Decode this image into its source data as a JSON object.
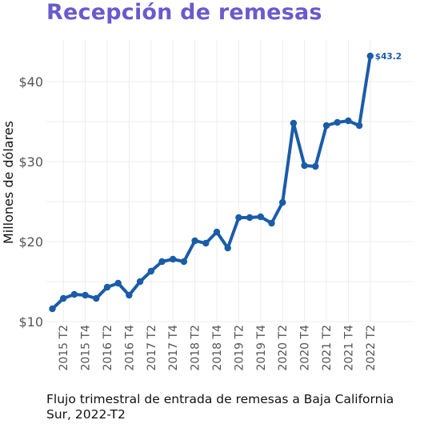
{
  "colors": {
    "title": "#6a5acd",
    "series": "#1a5ca8",
    "grid": "#ececec"
  },
  "chart_data": {
    "type": "line",
    "title": "Recepción de remesas",
    "caption": "Flujo trimestral de entrada de remesas a Baja California Sur, 2022-T2",
    "xlabel": "",
    "ylabel": "Millones de dólares",
    "ylim": [
      10,
      45
    ],
    "yticks": [
      10,
      20,
      30,
      40
    ],
    "ytick_labels": [
      "$10",
      "$20",
      "$30",
      "$40"
    ],
    "xtick_labels": [
      "2015 T2",
      "2015 T4",
      "2016 T2",
      "2016 T4",
      "2017 T2",
      "2017 T4",
      "2018 T2",
      "2018 T4",
      "2019 T2",
      "2019 T4",
      "2020 T2",
      "2020 T4",
      "2021 T2",
      "2021 T4",
      "2022 T2"
    ],
    "grid": true,
    "x": [
      "2015 T1",
      "2015 T2",
      "2015 T3",
      "2015 T4",
      "2016 T1",
      "2016 T2",
      "2016 T3",
      "2016 T4",
      "2017 T1",
      "2017 T2",
      "2017 T3",
      "2017 T4",
      "2018 T1",
      "2018 T2",
      "2018 T3",
      "2018 T4",
      "2019 T1",
      "2019 T2",
      "2019 T3",
      "2019 T4",
      "2020 T1",
      "2020 T2",
      "2020 T3",
      "2020 T4",
      "2021 T1",
      "2021 T2",
      "2021 T3",
      "2021 T4",
      "2022 T1",
      "2022 T2"
    ],
    "series": [
      {
        "values": [
          11.6,
          12.9,
          13.4,
          13.3,
          12.9,
          14.3,
          14.8,
          13.3,
          15.0,
          16.3,
          17.5,
          17.8,
          17.5,
          20.1,
          19.8,
          21.2,
          19.2,
          23.0,
          23.0,
          23.1,
          22.3,
          24.9,
          34.8,
          29.5,
          29.4,
          34.5,
          34.9,
          35.1,
          34.5,
          43.2
        ]
      }
    ],
    "last_point_label": "$43.2"
  }
}
